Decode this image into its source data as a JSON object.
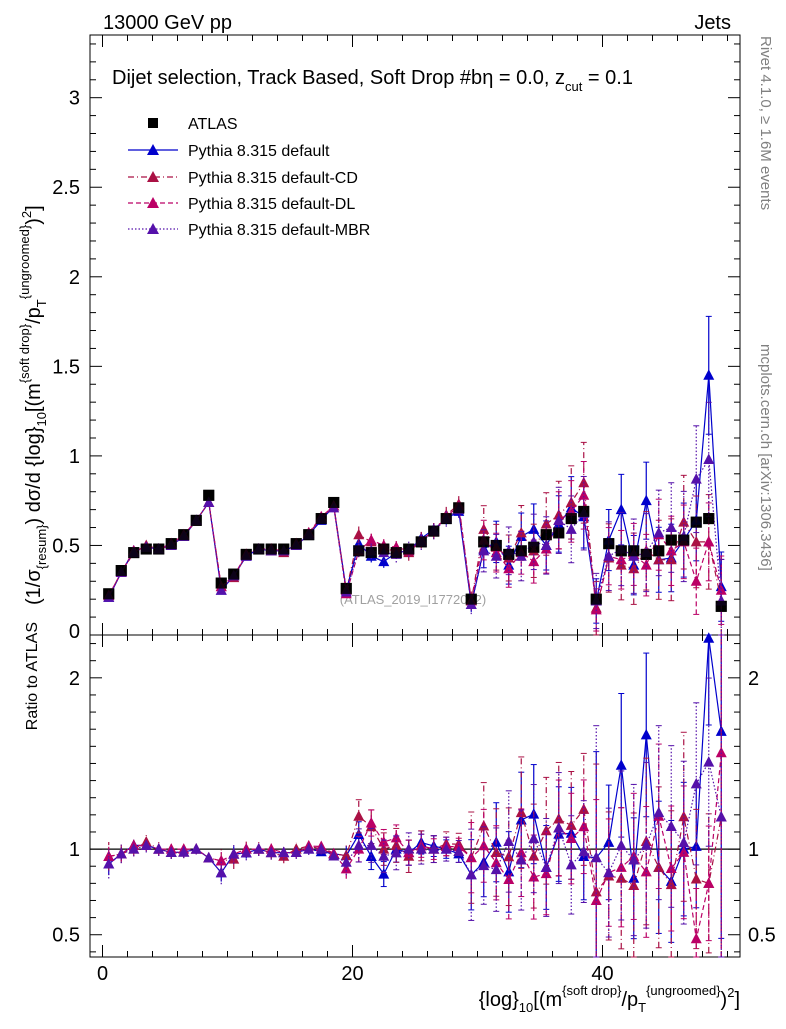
{
  "header": {
    "left": "13000 GeV pp",
    "right": "Jets"
  },
  "side_labels": {
    "rivet": "Rivet 4.1.0, ≥ 1.6M events",
    "mcplots": "mcplots.cern.ch [arXiv:1306.3436]"
  },
  "chart_data": {
    "type": "scatter",
    "title": "Dijet selection, Track Based, Soft Drop #b",
    "title_eta": "η = 0.0, z",
    "title_cut_sub": "cut",
    "title_zval": " = 0.1",
    "watermark": "(ATLAS_2019_I1772062)",
    "xlabel_parts": {
      "log": "{log}",
      "log_sub": "10",
      "open": "[(m",
      "sd_sup": "{soft drop}",
      "slash": "/p",
      "pt_sub": "T",
      "ung_sup": "{ungroomed}",
      "close": ")",
      "sq": "2",
      "end": "]"
    },
    "ylabel_parts": {
      "a": "(1/σ",
      "a_sub": "{resum}",
      "b": ") dσ/d {log}",
      "b_sub": "10",
      "c": "[(m",
      "c_sup": "{soft drop}",
      "d": "/p",
      "d_sub": "T",
      "d_sup": "{ungroomed}",
      "e": ")",
      "e_sup": "2",
      "f": "]"
    },
    "ratio_ylabel": "Ratio to ATLAS",
    "xlim": [
      -1,
      51
    ],
    "ylim": [
      0,
      3.35
    ],
    "ratio_ylim": [
      0.37,
      2.25
    ],
    "xticks": [
      0,
      20,
      40
    ],
    "xtick_labels": [
      "0",
      "20",
      "40"
    ],
    "yticks": [
      0.5,
      1,
      1.5,
      2,
      2.5,
      3
    ],
    "ytick_labels": [
      "0.5",
      "1",
      "1.5",
      "2",
      "2.5",
      "3"
    ],
    "ytick_zero": "0",
    "ratio_yticks": [
      0.5,
      1,
      2
    ],
    "ratio_ytick_labels": [
      "0.5",
      "1",
      "2"
    ],
    "x": [
      0.5,
      1.5,
      2.5,
      3.5,
      4.5,
      5.5,
      6.5,
      7.5,
      8.5,
      9.5,
      10.5,
      11.5,
      12.5,
      13.5,
      14.5,
      15.5,
      16.5,
      17.5,
      18.5,
      19.5,
      20.5,
      21.5,
      22.5,
      23.5,
      24.5,
      25.5,
      26.5,
      27.5,
      28.5,
      29.5,
      30.5,
      31.5,
      32.5,
      33.5,
      34.5,
      35.5,
      36.5,
      37.5,
      38.5,
      39.5,
      40.5,
      41.5,
      42.5,
      43.5,
      44.5,
      45.5,
      46.5,
      47.5,
      48.5,
      49.5
    ],
    "series": [
      {
        "name": "ATLAS",
        "color": "#000000",
        "marker": "square",
        "values": [
          0.23,
          0.36,
          0.46,
          0.48,
          0.48,
          0.51,
          0.56,
          0.64,
          0.78,
          0.29,
          0.34,
          0.45,
          0.48,
          0.48,
          0.48,
          0.51,
          0.56,
          0.65,
          0.74,
          0.26,
          0.47,
          0.46,
          0.48,
          0.46,
          0.48,
          0.52,
          0.58,
          0.65,
          0.71,
          0.2,
          0.52,
          0.5,
          0.45,
          0.47,
          0.49,
          0.56,
          0.57,
          0.65,
          0.69,
          0.2,
          0.51,
          0.47,
          0.47,
          0.45,
          0.47,
          0.53,
          0.53,
          0.63,
          0.65,
          0.16
        ]
      },
      {
        "name": "Pythia 8.315 default",
        "color": "#0000cc",
        "marker": "triangle",
        "line": "solid",
        "values": [
          0.21,
          0.35,
          0.47,
          0.49,
          0.48,
          0.5,
          0.55,
          0.64,
          0.74,
          0.25,
          0.33,
          0.44,
          0.48,
          0.47,
          0.47,
          0.5,
          0.56,
          0.64,
          0.72,
          0.25,
          0.51,
          0.44,
          0.41,
          0.46,
          0.47,
          0.54,
          0.59,
          0.65,
          0.69,
          0.17,
          0.48,
          0.52,
          0.39,
          0.55,
          0.59,
          0.5,
          0.62,
          0.71,
          0.66,
          0.19,
          0.53,
          0.7,
          0.39,
          0.75,
          0.42,
          0.43,
          0.53,
          0.64,
          1.45,
          0.27
        ]
      },
      {
        "name": "Pythia 8.315 default-CD",
        "color": "#aa1144",
        "marker": "triangle",
        "line": "dashdot",
        "values": [
          0.22,
          0.35,
          0.46,
          0.5,
          0.48,
          0.5,
          0.55,
          0.64,
          0.74,
          0.27,
          0.32,
          0.45,
          0.48,
          0.47,
          0.46,
          0.51,
          0.57,
          0.65,
          0.72,
          0.25,
          0.56,
          0.52,
          0.48,
          0.47,
          0.46,
          0.53,
          0.58,
          0.67,
          0.73,
          0.19,
          0.59,
          0.49,
          0.43,
          0.57,
          0.47,
          0.62,
          0.67,
          0.74,
          0.85,
          0.15,
          0.43,
          0.39,
          0.37,
          0.47,
          0.42,
          0.42,
          0.63,
          0.52,
          0.52,
          0.19
        ]
      },
      {
        "name": "Pythia 8.315 default-DL",
        "color": "#bb0066",
        "marker": "triangle",
        "line": "dashed",
        "values": [
          0.22,
          0.35,
          0.47,
          0.49,
          0.48,
          0.51,
          0.56,
          0.64,
          0.74,
          0.27,
          0.33,
          0.45,
          0.48,
          0.48,
          0.47,
          0.5,
          0.57,
          0.66,
          0.72,
          0.23,
          0.47,
          0.53,
          0.5,
          0.49,
          0.47,
          0.53,
          0.58,
          0.66,
          0.72,
          0.19,
          0.53,
          0.46,
          0.37,
          0.46,
          0.41,
          0.48,
          0.64,
          0.69,
          0.78,
          0.14,
          0.44,
          0.42,
          0.45,
          0.39,
          0.56,
          0.47,
          0.52,
          0.3,
          0.52,
          0.25
        ]
      },
      {
        "name": "Pythia 8.315 default-MBR",
        "color": "#5511aa",
        "marker": "triangle",
        "line": "dotted",
        "values": [
          0.21,
          0.35,
          0.46,
          0.49,
          0.48,
          0.5,
          0.55,
          0.64,
          0.74,
          0.25,
          0.33,
          0.44,
          0.48,
          0.47,
          0.47,
          0.5,
          0.56,
          0.65,
          0.71,
          0.24,
          0.48,
          0.47,
          0.46,
          0.45,
          0.48,
          0.52,
          0.58,
          0.65,
          0.7,
          0.17,
          0.47,
          0.44,
          0.47,
          0.44,
          0.52,
          0.5,
          0.64,
          0.59,
          0.68,
          0.19,
          0.44,
          0.48,
          0.44,
          0.46,
          0.57,
          0.6,
          0.55,
          0.87,
          0.98,
          0.19
        ]
      }
    ]
  }
}
